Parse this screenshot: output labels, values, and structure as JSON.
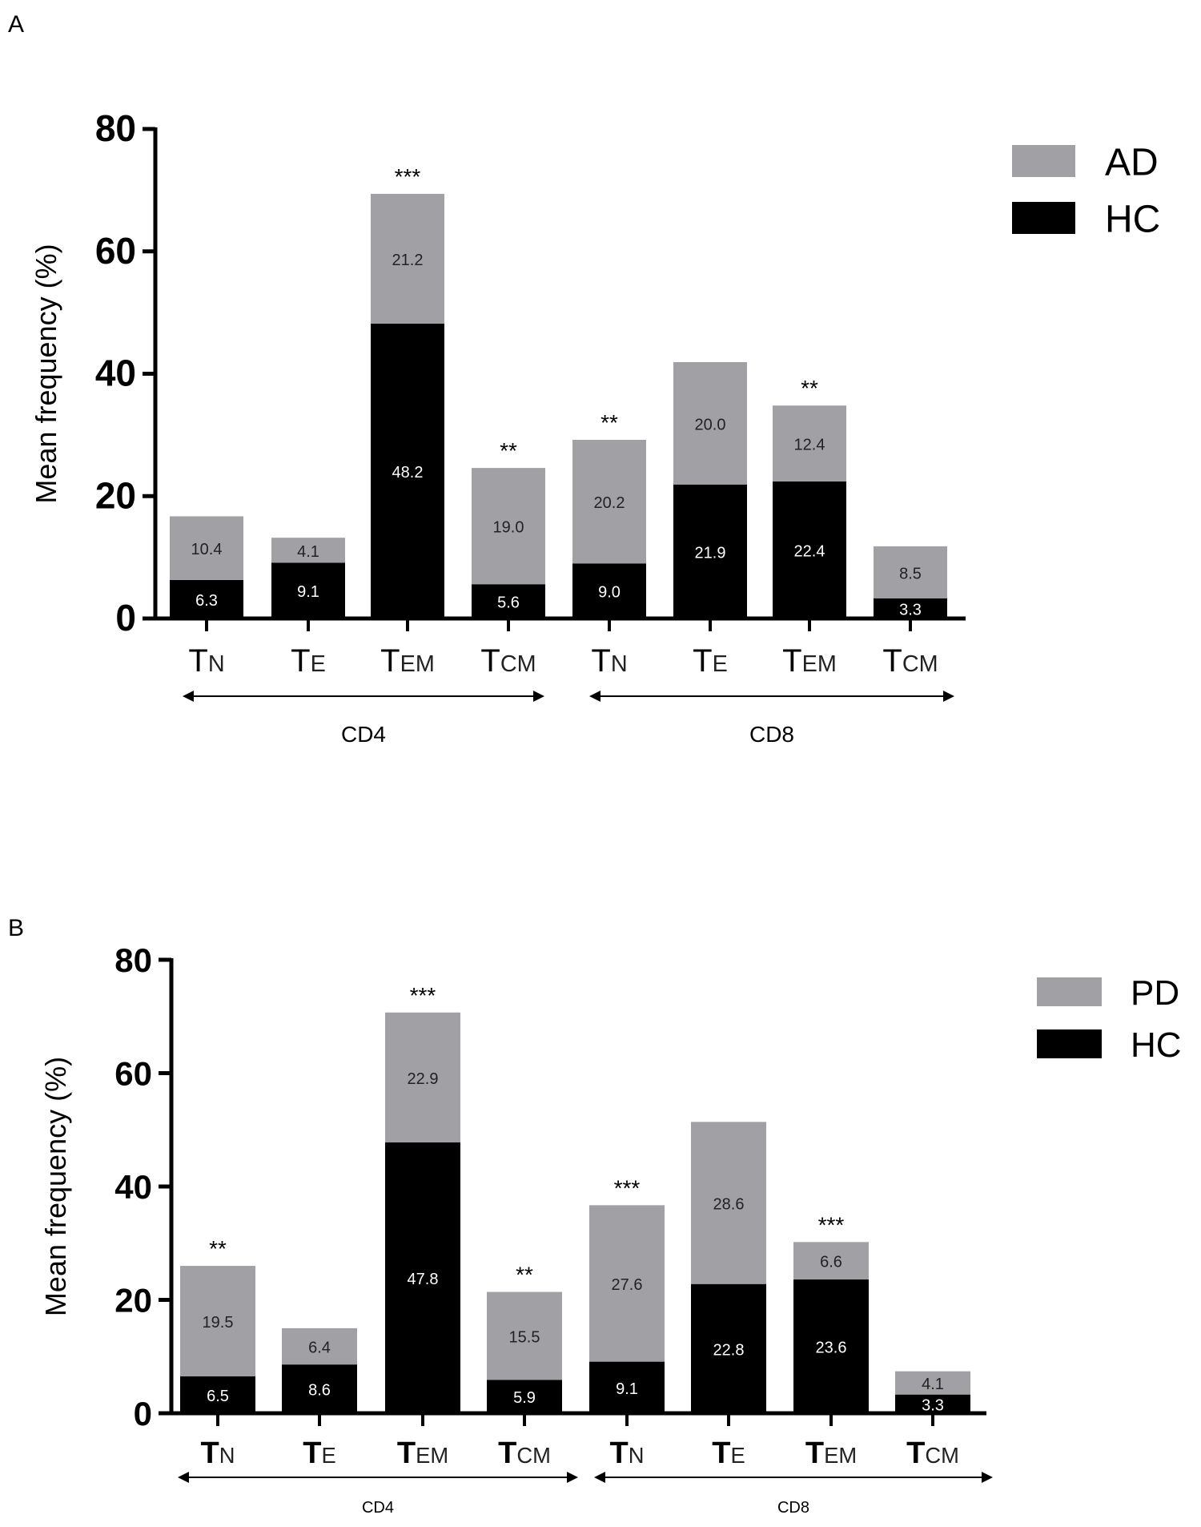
{
  "chart_data": [
    {
      "panel_label": "A",
      "type": "bar",
      "stacked": true,
      "categories": [
        "TN",
        "TE",
        "TEM",
        "TCM",
        "TN",
        "TE",
        "TEM",
        "TCM"
      ],
      "category_parts": [
        [
          "T",
          "N"
        ],
        [
          "T",
          "E"
        ],
        [
          "T",
          "EM"
        ],
        [
          "T",
          "CM"
        ],
        [
          "T",
          "N"
        ],
        [
          "T",
          "E"
        ],
        [
          "T",
          "EM"
        ],
        [
          "T",
          "CM"
        ]
      ],
      "groups": [
        {
          "label": "CD4",
          "span": [
            0,
            3
          ]
        },
        {
          "label": "CD8",
          "span": [
            4,
            7
          ]
        }
      ],
      "series": [
        {
          "name": "HC",
          "color": "#000000",
          "values": [
            6.3,
            9.1,
            48.2,
            5.6,
            9.0,
            21.9,
            22.4,
            3.3
          ],
          "labels": [
            "6.3",
            "9.1",
            "48.2",
            "5.6",
            "9.0",
            "21.9",
            "22.4",
            "3.3"
          ]
        },
        {
          "name": "AD",
          "color": "#a1a1a5",
          "values": [
            10.4,
            4.1,
            21.2,
            19.0,
            20.2,
            20.0,
            12.4,
            8.5
          ],
          "labels": [
            "10.4",
            "4.1",
            "21.2",
            "19.0",
            "20.2",
            "20.0",
            "12.4",
            "8.5"
          ]
        }
      ],
      "significance": [
        "",
        "",
        "***",
        "**",
        "**",
        "",
        "**",
        ""
      ],
      "ylabel": "Mean frequency (%)",
      "ylim": [
        0,
        80
      ],
      "yticks": [
        "0",
        "20",
        "40",
        "60",
        "80"
      ],
      "legend": {
        "placement": "top-right",
        "order": [
          "AD",
          "HC"
        ]
      }
    },
    {
      "panel_label": "B",
      "type": "bar",
      "stacked": true,
      "categories": [
        "TN",
        "TE",
        "TEM",
        "TCM",
        "TN",
        "TE",
        "TEM",
        "TCM"
      ],
      "category_parts": [
        [
          "T",
          "N"
        ],
        [
          "T",
          "E"
        ],
        [
          "T",
          "EM"
        ],
        [
          "T",
          "CM"
        ],
        [
          "T",
          "N"
        ],
        [
          "T",
          "E"
        ],
        [
          "T",
          "EM"
        ],
        [
          "T",
          "CM"
        ]
      ],
      "groups": [
        {
          "label": "CD4",
          "span": [
            0,
            3
          ]
        },
        {
          "label": "CD8",
          "span": [
            4,
            7
          ]
        }
      ],
      "series": [
        {
          "name": "HC",
          "color": "#000000",
          "values": [
            6.5,
            8.6,
            47.8,
            5.9,
            9.1,
            22.8,
            23.6,
            3.3
          ],
          "labels": [
            "6.5",
            "8.6",
            "47.8",
            "5.9",
            "9.1",
            "22.8",
            "23.6",
            "3.3"
          ]
        },
        {
          "name": "PD",
          "color": "#a1a1a5",
          "values": [
            19.5,
            6.4,
            22.9,
            15.5,
            27.6,
            28.6,
            6.6,
            4.1
          ],
          "labels": [
            "19.5",
            "6.4",
            "22.9",
            "15.5",
            "27.6",
            "28.6",
            "6.6",
            "4.1"
          ]
        }
      ],
      "significance": [
        "**",
        "",
        "***",
        "**",
        "***",
        "",
        "***",
        ""
      ],
      "ylabel": "Mean frequency (%)",
      "ylim": [
        0,
        80
      ],
      "yticks": [
        "0",
        "20",
        "40",
        "60",
        "80"
      ],
      "legend": {
        "placement": "top-right",
        "order": [
          "PD",
          "HC"
        ]
      }
    }
  ]
}
